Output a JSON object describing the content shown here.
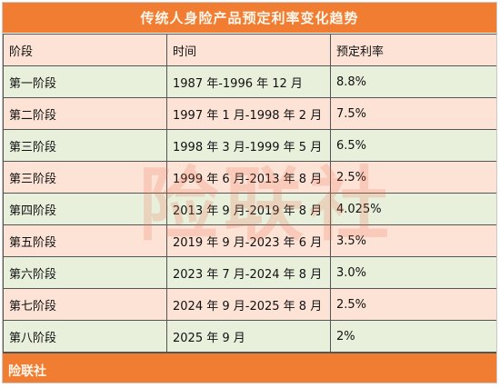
{
  "title": "传统人身险产品预定利率变化趋势",
  "columns": [
    "阶段",
    "时间",
    "预定利率"
  ],
  "rows": [
    {
      "stage": "第一阶段",
      "period": "1987 年-1996 年 12 月",
      "rate": "8.8%"
    },
    {
      "stage": "第二阶段",
      "period": "1997 年 1 月-1998 年 2 月",
      "rate": "7.5%"
    },
    {
      "stage": "第三阶段",
      "period": "1998 年 3 月-1999 年 5 月",
      "rate": "6.5%"
    },
    {
      "stage": "第三阶段",
      "period": "1999 年 6 月-2013 年 8 月",
      "rate": "2.5%"
    },
    {
      "stage": "第四阶段",
      "period": "2013 年 9 月-2019 年 8 月",
      "rate": "4.025%"
    },
    {
      "stage": "第五阶段",
      "period": "2019 年 9 月-2023 年 6 月",
      "rate": "3.5%"
    },
    {
      "stage": "第六阶段",
      "period": "2023 年 7 月-2024 年 8 月",
      "rate": "3.0%"
    },
    {
      "stage": "第七阶段",
      "period": "2024 年 9 月-2025 年 8 月",
      "rate": "2.5%"
    },
    {
      "stage": "第八阶段",
      "period": "2025 年 9 月",
      "rate": "2%"
    }
  ],
  "footer": "险联社",
  "watermark": "险联社",
  "colors": {
    "header_orange": "#f07d32",
    "row_pink": "#fde3d6",
    "row_green": "#e8f0dc"
  }
}
